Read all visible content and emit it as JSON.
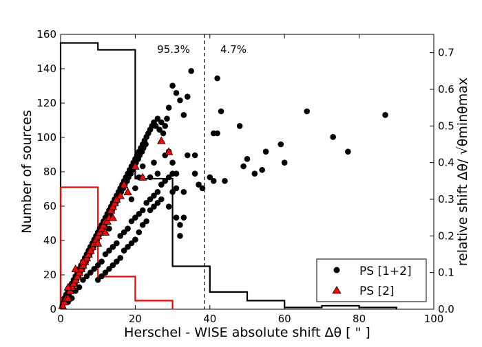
{
  "chart_data": {
    "type": "scatter",
    "xlabel": "Herschel - WISE absolute shift Δθ [ \" ]",
    "ylabel": "Number of sources",
    "y2label": "relative shift Δθ/ √θminθmax",
    "xlim": [
      0,
      100
    ],
    "ylim": [
      0,
      160
    ],
    "y2lim": [
      0,
      0.75
    ],
    "x_ticks": [
      "0",
      "20",
      "40",
      "60",
      "80",
      "100"
    ],
    "y_ticks": [
      "0",
      "20",
      "40",
      "60",
      "80",
      "100",
      "120",
      "140",
      "160"
    ],
    "y2_ticks": [
      "0.0",
      "0.1",
      "0.2",
      "0.3",
      "0.4",
      "0.5",
      "0.6",
      "0.7"
    ],
    "threshold_x": 38.5,
    "annotations": [
      {
        "text": "95.3%",
        "x": 29,
        "y": 148
      },
      {
        "text": "4.7%",
        "x": 46,
        "y": 148
      }
    ],
    "histograms": [
      {
        "name": "PS [1+2]",
        "color": "#000000",
        "bin_edges": [
          0,
          10,
          20,
          30,
          40,
          50,
          60,
          70,
          80,
          90
        ],
        "counts": [
          155,
          151,
          76,
          25,
          10,
          5,
          1,
          2,
          1
        ]
      },
      {
        "name": "PS [2]",
        "color": "#ff0000",
        "bin_edges": [
          0,
          10,
          20,
          30
        ],
        "counts": [
          71,
          19,
          5
        ]
      }
    ],
    "scatter_series": [
      {
        "name": "PS [1+2]",
        "marker": "circle",
        "color": "#000000",
        "points": [
          [
            0.5,
            0.01
          ],
          [
            0.8,
            0.02
          ],
          [
            1,
            0.03
          ],
          [
            1.2,
            0.02
          ],
          [
            1.5,
            0.04
          ],
          [
            1.8,
            0.03
          ],
          [
            2,
            0.05
          ],
          [
            2.2,
            0.04
          ],
          [
            2.5,
            0.06
          ],
          [
            2.8,
            0.05
          ],
          [
            3,
            0.07
          ],
          [
            3.2,
            0.06
          ],
          [
            3.5,
            0.08
          ],
          [
            3.8,
            0.07
          ],
          [
            4,
            0.09
          ],
          [
            4.2,
            0.08
          ],
          [
            4.5,
            0.1
          ],
          [
            4.8,
            0.09
          ],
          [
            5,
            0.11
          ],
          [
            5.2,
            0.1
          ],
          [
            5.5,
            0.12
          ],
          [
            5.8,
            0.11
          ],
          [
            6,
            0.13
          ],
          [
            6.2,
            0.12
          ],
          [
            6.5,
            0.14
          ],
          [
            6.8,
            0.13
          ],
          [
            7,
            0.15
          ],
          [
            7.2,
            0.14
          ],
          [
            7.5,
            0.16
          ],
          [
            7.8,
            0.15
          ],
          [
            8,
            0.17
          ],
          [
            8.2,
            0.16
          ],
          [
            8.5,
            0.18
          ],
          [
            8.8,
            0.17
          ],
          [
            9,
            0.19
          ],
          [
            9.2,
            0.18
          ],
          [
            9.5,
            0.2
          ],
          [
            9.8,
            0.19
          ],
          [
            10,
            0.21
          ],
          [
            10.2,
            0.2
          ],
          [
            10.5,
            0.22
          ],
          [
            10.8,
            0.21
          ],
          [
            11,
            0.23
          ],
          [
            11.2,
            0.22
          ],
          [
            11.5,
            0.24
          ],
          [
            11.8,
            0.23
          ],
          [
            12,
            0.25
          ],
          [
            12.2,
            0.24
          ],
          [
            12.5,
            0.26
          ],
          [
            12.8,
            0.25
          ],
          [
            13,
            0.27
          ],
          [
            13.2,
            0.26
          ],
          [
            13.5,
            0.28
          ],
          [
            13.8,
            0.27
          ],
          [
            14,
            0.29
          ],
          [
            14.2,
            0.28
          ],
          [
            14.5,
            0.3
          ],
          [
            14.8,
            0.29
          ],
          [
            15,
            0.31
          ],
          [
            15.2,
            0.3
          ],
          [
            15.5,
            0.32
          ],
          [
            15.8,
            0.31
          ],
          [
            16,
            0.33
          ],
          [
            16.2,
            0.32
          ],
          [
            16.5,
            0.34
          ],
          [
            16.8,
            0.33
          ],
          [
            17,
            0.35
          ],
          [
            17.2,
            0.34
          ],
          [
            17.5,
            0.36
          ],
          [
            17.8,
            0.35
          ],
          [
            18,
            0.37
          ],
          [
            18.2,
            0.36
          ],
          [
            18.5,
            0.38
          ],
          [
            18.8,
            0.37
          ],
          [
            19,
            0.39
          ],
          [
            19.2,
            0.38
          ],
          [
            19.5,
            0.4
          ],
          [
            19.8,
            0.39
          ],
          [
            20,
            0.41
          ],
          [
            20.2,
            0.4
          ],
          [
            20.5,
            0.42
          ],
          [
            20.8,
            0.41
          ],
          [
            21,
            0.43
          ],
          [
            21.2,
            0.42
          ],
          [
            21.5,
            0.44
          ],
          [
            21.8,
            0.43
          ],
          [
            22,
            0.45
          ],
          [
            22.2,
            0.44
          ],
          [
            22.5,
            0.46
          ],
          [
            22.8,
            0.45
          ],
          [
            23,
            0.47
          ],
          [
            23.5,
            0.48
          ],
          [
            24,
            0.49
          ],
          [
            24.5,
            0.5
          ],
          [
            25,
            0.51
          ],
          [
            25.5,
            0.5
          ],
          [
            26,
            0.52
          ],
          [
            26.5,
            0.49
          ],
          [
            27,
            0.51
          ],
          [
            27.5,
            0.48
          ],
          [
            28,
            0.5
          ],
          [
            28.5,
            0.52
          ],
          [
            29,
            0.55
          ],
          [
            30,
            0.61
          ],
          [
            31,
            0.59
          ],
          [
            32,
            0.57
          ],
          [
            33,
            0.53
          ],
          [
            34,
            0.58
          ],
          [
            35,
            0.65
          ],
          [
            36,
            0.42
          ],
          [
            2,
            0.02
          ],
          [
            3,
            0.03
          ],
          [
            4,
            0.05
          ],
          [
            5,
            0.06
          ],
          [
            6,
            0.08
          ],
          [
            7,
            0.09
          ],
          [
            8,
            0.1
          ],
          [
            9,
            0.11
          ],
          [
            10,
            0.12
          ],
          [
            11,
            0.13
          ],
          [
            12,
            0.15
          ],
          [
            13,
            0.16
          ],
          [
            14,
            0.17
          ],
          [
            15,
            0.18
          ],
          [
            16,
            0.2
          ],
          [
            17,
            0.21
          ],
          [
            18,
            0.22
          ],
          [
            19,
            0.24
          ],
          [
            20,
            0.25
          ],
          [
            21,
            0.26
          ],
          [
            22,
            0.27
          ],
          [
            23,
            0.29
          ],
          [
            24,
            0.3
          ],
          [
            25,
            0.31
          ],
          [
            26,
            0.32
          ],
          [
            27,
            0.34
          ],
          [
            28,
            0.35
          ],
          [
            29,
            0.36
          ],
          [
            30,
            0.37
          ],
          [
            31,
            0.33
          ],
          [
            10,
            0.08
          ],
          [
            11,
            0.09
          ],
          [
            12,
            0.1
          ],
          [
            13,
            0.11
          ],
          [
            14,
            0.12
          ],
          [
            15,
            0.13
          ],
          [
            16,
            0.14
          ],
          [
            17,
            0.16
          ],
          [
            18,
            0.17
          ],
          [
            19,
            0.18
          ],
          [
            20,
            0.19
          ],
          [
            21,
            0.21
          ],
          [
            22,
            0.23
          ],
          [
            23,
            0.24
          ],
          [
            24,
            0.27
          ],
          [
            25,
            0.28
          ],
          [
            26,
            0.29
          ],
          [
            27,
            0.3
          ],
          [
            29,
            0.28
          ],
          [
            31,
            0.25
          ],
          [
            32,
            0.23
          ],
          [
            32,
            0.2
          ],
          [
            33,
            0.25
          ],
          [
            19,
            0.3
          ],
          [
            20,
            0.33
          ],
          [
            21,
            0.36
          ],
          [
            22,
            0.39
          ],
          [
            24,
            0.36
          ],
          [
            25,
            0.4
          ],
          [
            26,
            0.37
          ],
          [
            27,
            0.34
          ],
          [
            28,
            0.42
          ],
          [
            29,
            0.43
          ],
          [
            30,
            0.4
          ],
          [
            31,
            0.37
          ],
          [
            30,
            0.32
          ],
          [
            33,
            0.32
          ],
          [
            34,
            0.42
          ],
          [
            15,
            0.18
          ],
          [
            13,
            0.22
          ],
          [
            38,
            0.33
          ],
          [
            40,
            0.36
          ],
          [
            41,
            0.48
          ],
          [
            42,
            0.63
          ],
          [
            43,
            0.54
          ],
          [
            42,
            0.48
          ],
          [
            44,
            0.35
          ],
          [
            48,
            0.5
          ],
          [
            49,
            0.39
          ],
          [
            50,
            0.41
          ],
          [
            52,
            0.37
          ],
          [
            54,
            0.38
          ],
          [
            55,
            0.43
          ],
          [
            59,
            0.45
          ],
          [
            60,
            0.4
          ],
          [
            66,
            0.54
          ],
          [
            73,
            0.47
          ],
          [
            77,
            0.43
          ],
          [
            87,
            0.53
          ],
          [
            41,
            0.35
          ],
          [
            36,
            0.37
          ],
          [
            37,
            0.34
          ]
        ]
      },
      {
        "name": "PS [2]",
        "marker": "triangle",
        "color": "#ff0000",
        "points": [
          [
            0.5,
            0.01
          ],
          [
            1,
            0.02
          ],
          [
            1.5,
            0.03
          ],
          [
            2,
            0.03
          ],
          [
            2.5,
            0.05
          ],
          [
            3,
            0.06
          ],
          [
            3.5,
            0.07
          ],
          [
            4,
            0.08
          ],
          [
            4.5,
            0.09
          ],
          [
            5,
            0.1
          ],
          [
            5.5,
            0.11
          ],
          [
            6,
            0.12
          ],
          [
            6.5,
            0.13
          ],
          [
            7,
            0.14
          ],
          [
            7.5,
            0.15
          ],
          [
            8,
            0.16
          ],
          [
            8.5,
            0.17
          ],
          [
            9,
            0.18
          ],
          [
            9.5,
            0.19
          ],
          [
            10,
            0.2
          ],
          [
            10.5,
            0.21
          ],
          [
            11,
            0.22
          ],
          [
            11.5,
            0.23
          ],
          [
            12,
            0.24
          ],
          [
            12.5,
            0.24
          ],
          [
            13,
            0.25
          ],
          [
            13.5,
            0.27
          ],
          [
            14,
            0.28
          ],
          [
            14.5,
            0.29
          ],
          [
            15,
            0.3
          ],
          [
            16,
            0.31
          ],
          [
            17,
            0.34
          ],
          [
            18,
            0.32
          ],
          [
            20,
            0.39
          ],
          [
            22,
            0.36
          ],
          [
            27,
            0.46
          ],
          [
            29,
            0.43
          ],
          [
            2,
            0.06
          ],
          [
            4,
            0.11
          ],
          [
            6,
            0.13
          ],
          [
            8,
            0.16
          ],
          [
            10,
            0.18
          ],
          [
            12,
            0.21
          ],
          [
            14,
            0.25
          ]
        ]
      }
    ],
    "legend": {
      "placement": "lower-right",
      "entries": [
        {
          "label": "PS [1+2]",
          "marker": "circle",
          "color": "#000000"
        },
        {
          "label": "PS [2]",
          "marker": "triangle",
          "color": "#ff0000"
        }
      ]
    }
  }
}
